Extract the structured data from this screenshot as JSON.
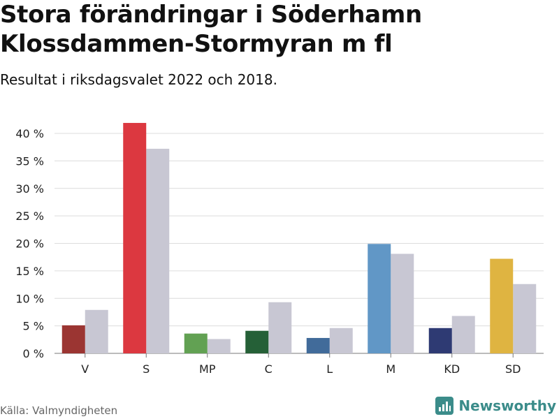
{
  "title_line1": "Stora förändringar i Söderhamn",
  "title_line2": "Klossdammen-Stormyran m fl",
  "subtitle": "Resultat i riksdagsvalet 2022 och 2018.",
  "source": "Källa: Valmyndigheten",
  "brand": "Newsworthy",
  "brand_color": "#3b8c8a",
  "chart_data": {
    "type": "bar",
    "title": "Stora förändringar i Söderhamn Klossdammen-Stormyran m fl",
    "subtitle": "Resultat i riksdagsvalet 2022 och 2018.",
    "xlabel": "",
    "ylabel": "",
    "ylim": [
      0,
      40
    ],
    "yticks": [
      0,
      5,
      10,
      15,
      20,
      25,
      30,
      35,
      40
    ],
    "ytick_labels": [
      "0 %",
      "5 %",
      "10 %",
      "15 %",
      "20 %",
      "25 %",
      "30 %",
      "35 %",
      "40 %"
    ],
    "grid": true,
    "categories": [
      "V",
      "S",
      "MP",
      "C",
      "L",
      "M",
      "KD",
      "SD"
    ],
    "series": [
      {
        "name": "2022",
        "values": [
          5.1,
          41.9,
          3.6,
          4.1,
          2.8,
          19.9,
          4.6,
          17.2
        ],
        "colors": [
          "#9b3532",
          "#dc3840",
          "#62a153",
          "#256037",
          "#416b9a",
          "#6197c6",
          "#2e3a73",
          "#dfb441"
        ]
      },
      {
        "name": "2018",
        "values": [
          7.9,
          37.2,
          2.6,
          9.3,
          4.6,
          18.1,
          6.8,
          12.6
        ],
        "color": "#c8c7d3"
      }
    ]
  }
}
